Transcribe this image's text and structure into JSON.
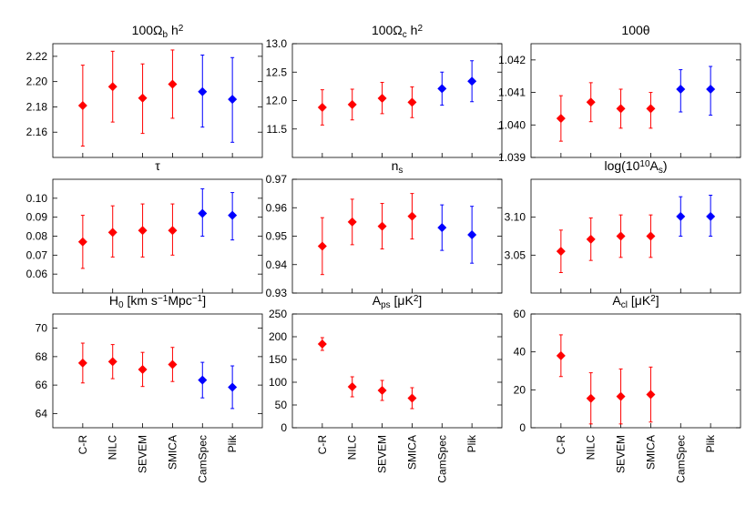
{
  "chart_data": {
    "type": "scatter",
    "categories": [
      "C-R",
      "NILC",
      "SEVEM",
      "SMICA",
      "CamSpec",
      "Plik"
    ],
    "colors": {
      "component_separation": "#ff0000",
      "likelihood": "#0000ff"
    },
    "category_colors": [
      "#ff0000",
      "#ff0000",
      "#ff0000",
      "#ff0000",
      "#0000ff",
      "#0000ff"
    ],
    "panels": [
      {
        "title": "100Ω",
        "title_sub": "b",
        "title_rest": " h",
        "title_sup": "2",
        "ylim": [
          2.14,
          2.23
        ],
        "yticks": [
          2.16,
          2.18,
          2.2,
          2.22
        ],
        "ytick_labels": [
          "2.16",
          "2.18",
          "2.20",
          "2.22"
        ],
        "values": [
          2.181,
          2.196,
          2.187,
          2.198,
          2.192,
          2.186
        ],
        "lower": [
          2.149,
          2.168,
          2.159,
          2.171,
          2.164,
          2.152
        ],
        "upper": [
          2.213,
          2.224,
          2.214,
          2.225,
          2.221,
          2.219
        ]
      },
      {
        "title": "100Ω",
        "title_sub": "c",
        "title_rest": " h",
        "title_sup": "2",
        "ylim": [
          11.0,
          13.0
        ],
        "yticks": [
          11.5,
          12.0,
          12.5,
          13.0
        ],
        "ytick_labels": [
          "11.5",
          "12.0",
          "12.5",
          "13.0"
        ],
        "values": [
          11.88,
          11.93,
          12.04,
          11.97,
          12.21,
          12.34
        ],
        "lower": [
          11.57,
          11.66,
          11.77,
          11.7,
          11.92,
          11.98
        ],
        "upper": [
          12.19,
          12.2,
          12.32,
          12.24,
          12.5,
          12.7
        ]
      },
      {
        "title": "100θ",
        "ylim": [
          1.039,
          1.0425
        ],
        "yticks": [
          1.039,
          1.04,
          1.041,
          1.042
        ],
        "ytick_labels": [
          "1.039",
          "1.040",
          "1.041",
          "1.042"
        ],
        "values": [
          1.0402,
          1.0407,
          1.0405,
          1.0405,
          1.0411,
          1.0411
        ],
        "lower": [
          1.0395,
          1.0401,
          1.0399,
          1.0399,
          1.0404,
          1.0403
        ],
        "upper": [
          1.0409,
          1.0413,
          1.0411,
          1.041,
          1.0417,
          1.0418
        ]
      },
      {
        "title": "τ",
        "ylim": [
          0.05,
          0.11
        ],
        "yticks": [
          0.06,
          0.07,
          0.08,
          0.09,
          0.1
        ],
        "ytick_labels": [
          "0.06",
          "0.07",
          "0.08",
          "0.09",
          "0.10"
        ],
        "values": [
          0.077,
          0.082,
          0.083,
          0.083,
          0.092,
          0.091
        ],
        "lower": [
          0.063,
          0.069,
          0.069,
          0.07,
          0.08,
          0.078
        ],
        "upper": [
          0.091,
          0.096,
          0.097,
          0.097,
          0.105,
          0.103
        ]
      },
      {
        "title": "n",
        "title_sub": "s",
        "ylim": [
          0.93,
          0.97
        ],
        "yticks": [
          0.93,
          0.94,
          0.95,
          0.96,
          0.97
        ],
        "ytick_labels": [
          "0.93",
          "0.94",
          "0.95",
          "0.96",
          "0.97"
        ],
        "values": [
          0.9465,
          0.955,
          0.9535,
          0.957,
          0.953,
          0.9505
        ],
        "lower": [
          0.9365,
          0.947,
          0.9455,
          0.949,
          0.945,
          0.9405
        ],
        "upper": [
          0.9565,
          0.963,
          0.9615,
          0.965,
          0.961,
          0.9605
        ]
      },
      {
        "title": "log(10",
        "title_sup": "10",
        "title_rest": "A",
        "title_sub2": "s",
        "title_end": ")",
        "ylim": [
          3.0,
          3.15
        ],
        "yticks": [
          3.05,
          3.1
        ],
        "ytick_labels": [
          "3.05",
          "3.10"
        ],
        "values": [
          3.055,
          3.071,
          3.075,
          3.075,
          3.101,
          3.101
        ],
        "lower": [
          3.027,
          3.043,
          3.047,
          3.047,
          3.075,
          3.075
        ],
        "upper": [
          3.083,
          3.099,
          3.103,
          3.103,
          3.127,
          3.129
        ]
      },
      {
        "title": "H",
        "title_sub": "0",
        "title_rest": " [km s",
        "title_sup": "−1",
        "title_rest2": "Mpc",
        "title_sup2": "−1",
        "title_end": "]",
        "ylim": [
          63.0,
          71.0
        ],
        "yticks": [
          64,
          66,
          68,
          70
        ],
        "ytick_labels": [
          "64",
          "66",
          "68",
          "70"
        ],
        "values": [
          67.55,
          67.65,
          67.1,
          67.45,
          66.35,
          65.85
        ],
        "lower": [
          66.15,
          66.45,
          65.9,
          66.25,
          65.1,
          64.35
        ],
        "upper": [
          68.95,
          68.85,
          68.3,
          68.65,
          67.6,
          67.35
        ]
      },
      {
        "title": "A",
        "title_sub": "ps",
        "title_rest": " [μK",
        "title_sup": "2",
        "title_end": "]",
        "ylim": [
          0,
          250
        ],
        "yticks": [
          0,
          50,
          100,
          150,
          200,
          250
        ],
        "ytick_labels": [
          "0",
          "50",
          "100",
          "150",
          "200",
          "250"
        ],
        "values": [
          184,
          90,
          82,
          65,
          null,
          null
        ],
        "lower": [
          170,
          68,
          60,
          42,
          null,
          null
        ],
        "upper": [
          198,
          112,
          104,
          88,
          null,
          null
        ]
      },
      {
        "title": "A",
        "title_sub": "cl",
        "title_rest": " [μK",
        "title_sup": "2",
        "title_end": "]",
        "ylim": [
          0,
          60
        ],
        "yticks": [
          0,
          20,
          40,
          60
        ],
        "ytick_labels": [
          "0",
          "20",
          "40",
          "60"
        ],
        "values": [
          38,
          15.5,
          16.5,
          17.5,
          null,
          null
        ],
        "lower": [
          27,
          2,
          2,
          3,
          null,
          null
        ],
        "upper": [
          49,
          29,
          31,
          32,
          null,
          null
        ]
      }
    ]
  }
}
